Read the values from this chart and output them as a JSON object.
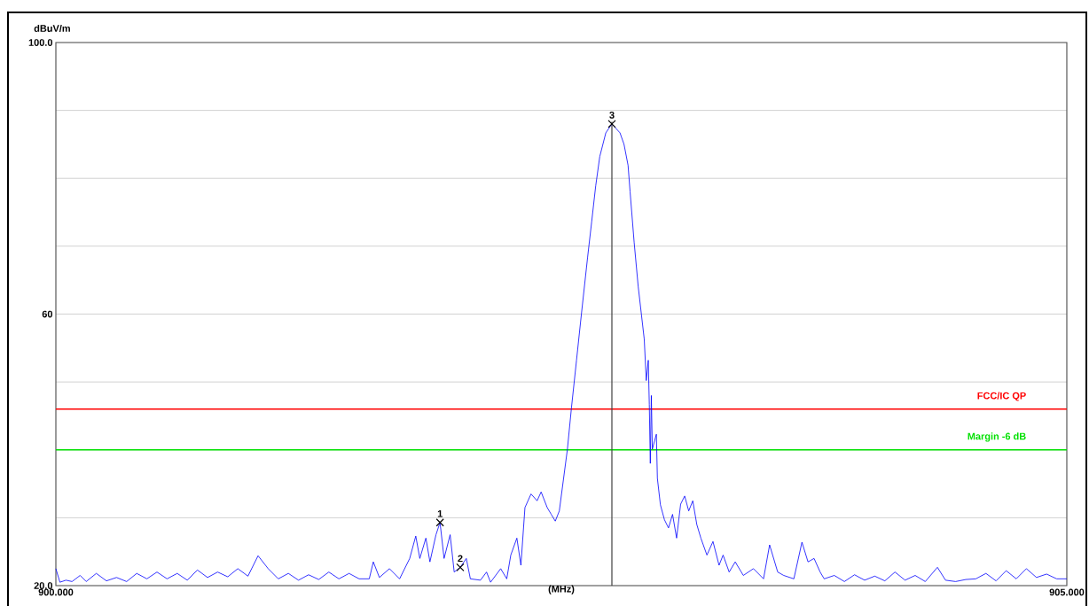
{
  "chart_data": {
    "type": "line",
    "ylabel": "dBuV/m",
    "xlabel": "(MHz)",
    "xlim": [
      900,
      905
    ],
    "ylim": [
      20,
      100
    ],
    "xticks": [
      {
        "value": 900,
        "label": "900.000"
      },
      {
        "value": 905,
        "label": "905.000"
      }
    ],
    "yticks": [
      {
        "value": 20,
        "label": "20.0"
      },
      {
        "value": 30,
        "label": null
      },
      {
        "value": 40,
        "label": null
      },
      {
        "value": 50,
        "label": null
      },
      60,
      {
        "value": 70,
        "label": null
      },
      {
        "value": 80,
        "label": null
      },
      {
        "value": 90,
        "label": null
      },
      {
        "value": 100,
        "label": "100.0"
      }
    ],
    "grid": "y",
    "marker": "none",
    "line_style": "solid",
    "series": [
      {
        "color": "#0000ff",
        "x": [
          900.0,
          900.02,
          900.05,
          900.08,
          900.12,
          900.15,
          900.2,
          900.25,
          900.3,
          900.35,
          900.4,
          900.45,
          900.5,
          900.55,
          900.6,
          900.65,
          900.7,
          900.75,
          900.8,
          900.85,
          900.9,
          900.95,
          901.0,
          901.05,
          901.1,
          901.15,
          901.2,
          901.25,
          901.3,
          901.35,
          901.4,
          901.45,
          901.5,
          901.55,
          901.57,
          901.6,
          901.65,
          901.7,
          901.75,
          901.78,
          901.8,
          901.83,
          901.85,
          901.88,
          901.9,
          901.92,
          901.95,
          901.97,
          902.0,
          902.03,
          902.05,
          902.1,
          902.13,
          902.15,
          902.2,
          902.23,
          902.25,
          902.28,
          902.3,
          902.32,
          902.35,
          902.38,
          902.4,
          902.43,
          902.45,
          902.47,
          902.49,
          902.53,
          902.55,
          902.575,
          902.6,
          902.63,
          902.65,
          902.67,
          902.69,
          902.72,
          902.75,
          902.79,
          902.81,
          902.83,
          902.84,
          902.86,
          902.88,
          902.91,
          902.92,
          902.93,
          902.935,
          902.94,
          902.945,
          902.95,
          902.97,
          902.975,
          902.99,
          903.01,
          903.03,
          903.05,
          903.07,
          903.09,
          903.11,
          903.13,
          903.15,
          903.17,
          903.19,
          903.22,
          903.25,
          903.28,
          903.3,
          903.33,
          903.36,
          903.4,
          903.45,
          903.5,
          903.53,
          903.57,
          903.6,
          903.65,
          903.69,
          903.72,
          903.75,
          903.78,
          903.8,
          903.85,
          903.9,
          903.95,
          904.0,
          904.05,
          904.1,
          904.15,
          904.2,
          904.25,
          904.3,
          904.36,
          904.4,
          904.45,
          904.5,
          904.55,
          904.6,
          904.65,
          904.7,
          904.75,
          904.8,
          904.85,
          904.9,
          904.95,
          905.0
        ],
        "values": [
          22.5,
          20.5,
          20.8,
          20.6,
          21.5,
          20.6,
          21.8,
          20.7,
          21.2,
          20.6,
          21.8,
          21.0,
          22.0,
          21.0,
          21.8,
          20.8,
          22.3,
          21.2,
          22.0,
          21.3,
          22.5,
          21.4,
          24.4,
          22.5,
          21.0,
          21.8,
          20.8,
          21.6,
          20.9,
          22.0,
          21.0,
          21.8,
          21.0,
          21.0,
          23.5,
          21.2,
          22.5,
          21.0,
          24.0,
          27.3,
          24.0,
          27.0,
          23.5,
          27.5,
          29.3,
          24.0,
          27.5,
          22.0,
          22.7,
          24.0,
          21.0,
          20.8,
          22.0,
          20.5,
          22.5,
          21.0,
          24.5,
          27.0,
          23.0,
          31.5,
          33.5,
          32.5,
          33.8,
          31.5,
          30.5,
          29.5,
          31.0,
          40.1,
          46.2,
          53.2,
          60.2,
          68.4,
          73.6,
          78.9,
          83.2,
          86.7,
          88.0,
          86.7,
          85.0,
          81.9,
          78.0,
          70.6,
          64.1,
          56.3,
          50.2,
          53.2,
          46.7,
          38.0,
          48.0,
          40.1,
          42.3,
          35.8,
          31.9,
          29.7,
          28.5,
          30.5,
          27.0,
          32.0,
          33.2,
          31.0,
          32.5,
          29.0,
          27.0,
          24.5,
          26.5,
          23.0,
          24.5,
          22.0,
          23.5,
          21.5,
          22.5,
          21.0,
          26.0,
          22.0,
          21.5,
          21.0,
          26.4,
          23.5,
          24.0,
          22.0,
          21.0,
          21.5,
          20.6,
          21.6,
          20.8,
          21.4,
          20.7,
          22.0,
          20.8,
          21.5,
          20.6,
          22.7,
          20.8,
          20.6,
          20.9,
          21.0,
          21.8,
          20.7,
          22.2,
          21.0,
          22.5,
          21.2,
          21.7,
          21.0,
          21.0
        ]
      }
    ],
    "ref_lines": [
      {
        "axis": "y",
        "value": 46,
        "label": "FCC/IC QP",
        "color": "#ff0000"
      },
      {
        "axis": "y",
        "value": 40,
        "label": "Margin -6 dB",
        "color": "#00e000"
      },
      {
        "axis": "x",
        "value": 902.75,
        "color": "#404040"
      }
    ],
    "annotations": [
      {
        "text": "1",
        "x": 901.9,
        "y": 29.3
      },
      {
        "text": "2",
        "x": 902.0,
        "y": 22.7
      },
      {
        "text": "3",
        "x": 902.75,
        "y": 88.0
      }
    ]
  }
}
